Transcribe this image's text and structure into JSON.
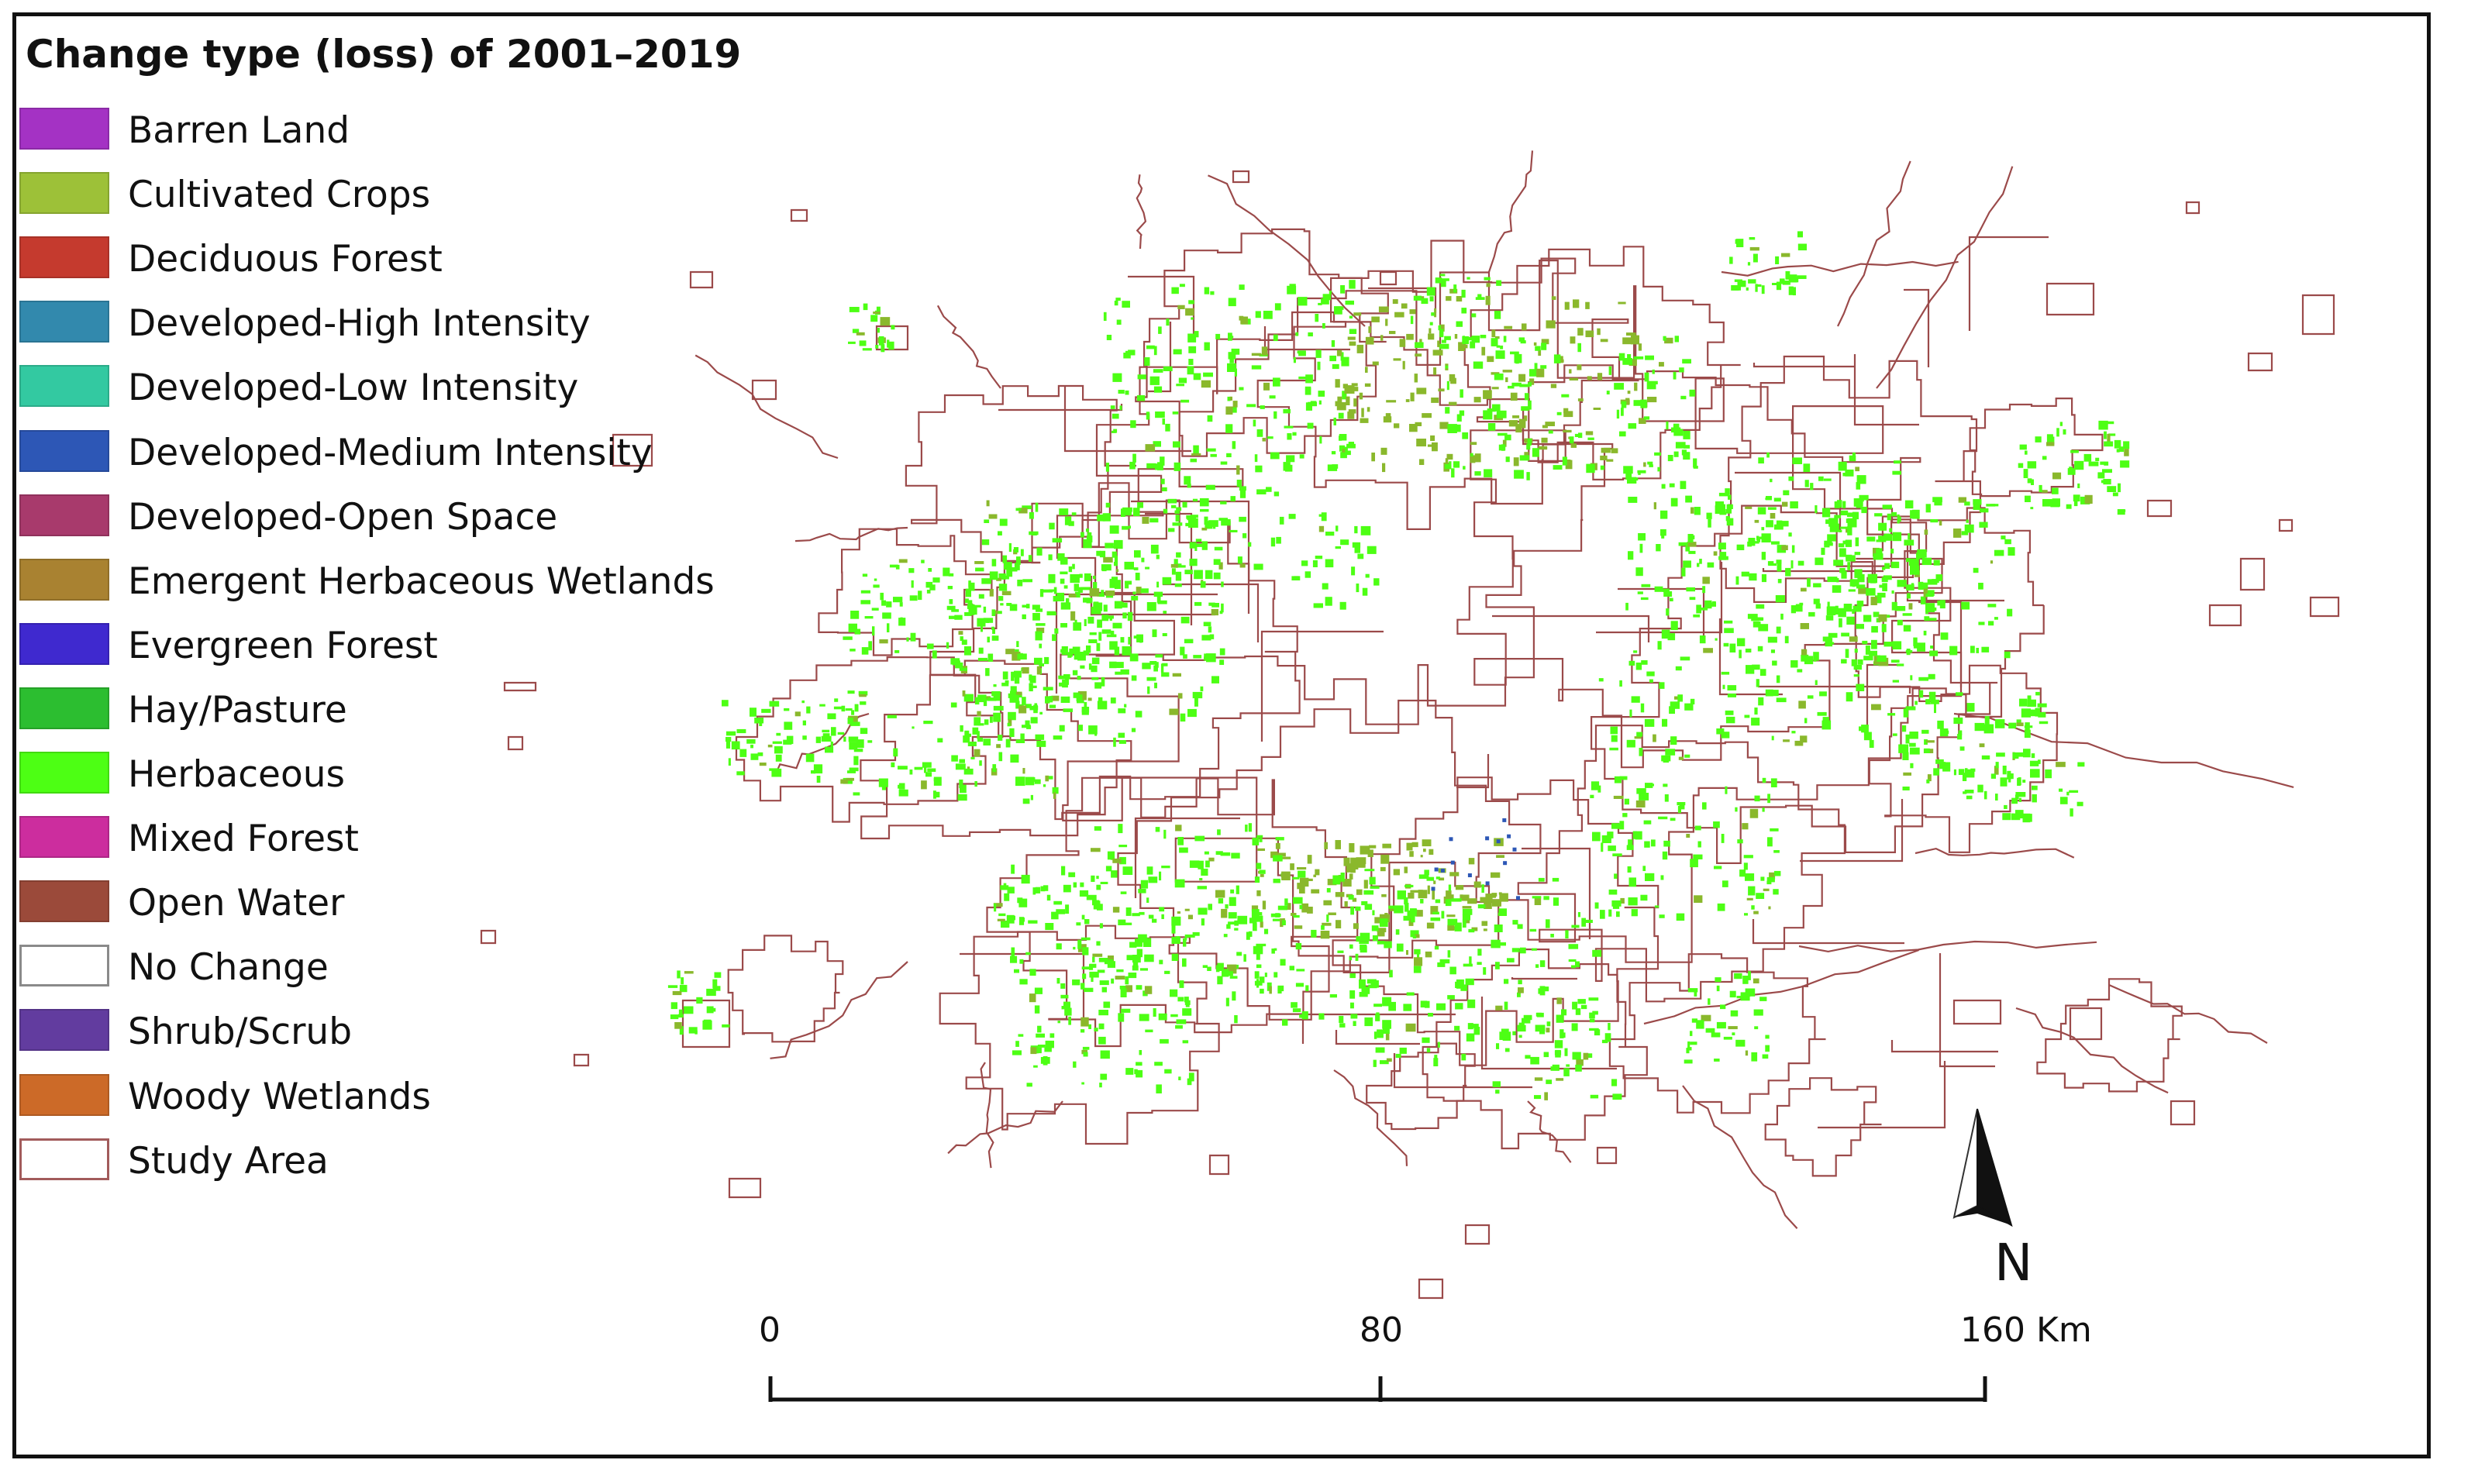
{
  "legend": {
    "title": "Change type (loss) of 2001–2019",
    "items": [
      {
        "label": "Barren Land",
        "color": "#a432c4",
        "kind": "fill"
      },
      {
        "label": "Cultivated Crops",
        "color": "#9dc138",
        "kind": "fill"
      },
      {
        "label": "Deciduous Forest",
        "color": "#c53a2e",
        "kind": "fill"
      },
      {
        "label": "Developed-High Intensity",
        "color": "#3289ad",
        "kind": "fill"
      },
      {
        "label": "Developed-Low Intensity",
        "color": "#33c9a1",
        "kind": "fill"
      },
      {
        "label": "Developed-Medium Intensity",
        "color": "#2d57b6",
        "kind": "fill"
      },
      {
        "label": "Developed-Open Space",
        "color": "#a83a6c",
        "kind": "fill"
      },
      {
        "label": "Emergent Herbaceous Wetlands",
        "color": "#a98231",
        "kind": "fill"
      },
      {
        "label": "Evergreen Forest",
        "color": "#3f29cf",
        "kind": "fill"
      },
      {
        "label": "Hay/Pasture",
        "color": "#2cbe30",
        "kind": "fill"
      },
      {
        "label": "Herbaceous",
        "color": "#4dff14",
        "kind": "fill"
      },
      {
        "label": "Mixed Forest",
        "color": "#cc2d9e",
        "kind": "fill"
      },
      {
        "label": "Open Water",
        "color": "#9b4a3a",
        "kind": "fill"
      },
      {
        "label": "No Change",
        "color": "#ffffff",
        "kind": "nochange"
      },
      {
        "label": "Shrub/Scrub",
        "color": "#623c9f",
        "kind": "fill"
      },
      {
        "label": "Woody Wetlands",
        "color": "#cc6a28",
        "kind": "fill"
      },
      {
        "label": "Study Area",
        "color": "#ffffff",
        "kind": "study"
      }
    ]
  },
  "map": {
    "boundary_color": "#9b4a4a",
    "dominant_change_color": "#4dff14",
    "secondary_change_color": "#8ab82c"
  },
  "scale_bar": {
    "labels": [
      "0",
      "80",
      "160 Km"
    ]
  },
  "north_arrow": {
    "letter": "N"
  }
}
